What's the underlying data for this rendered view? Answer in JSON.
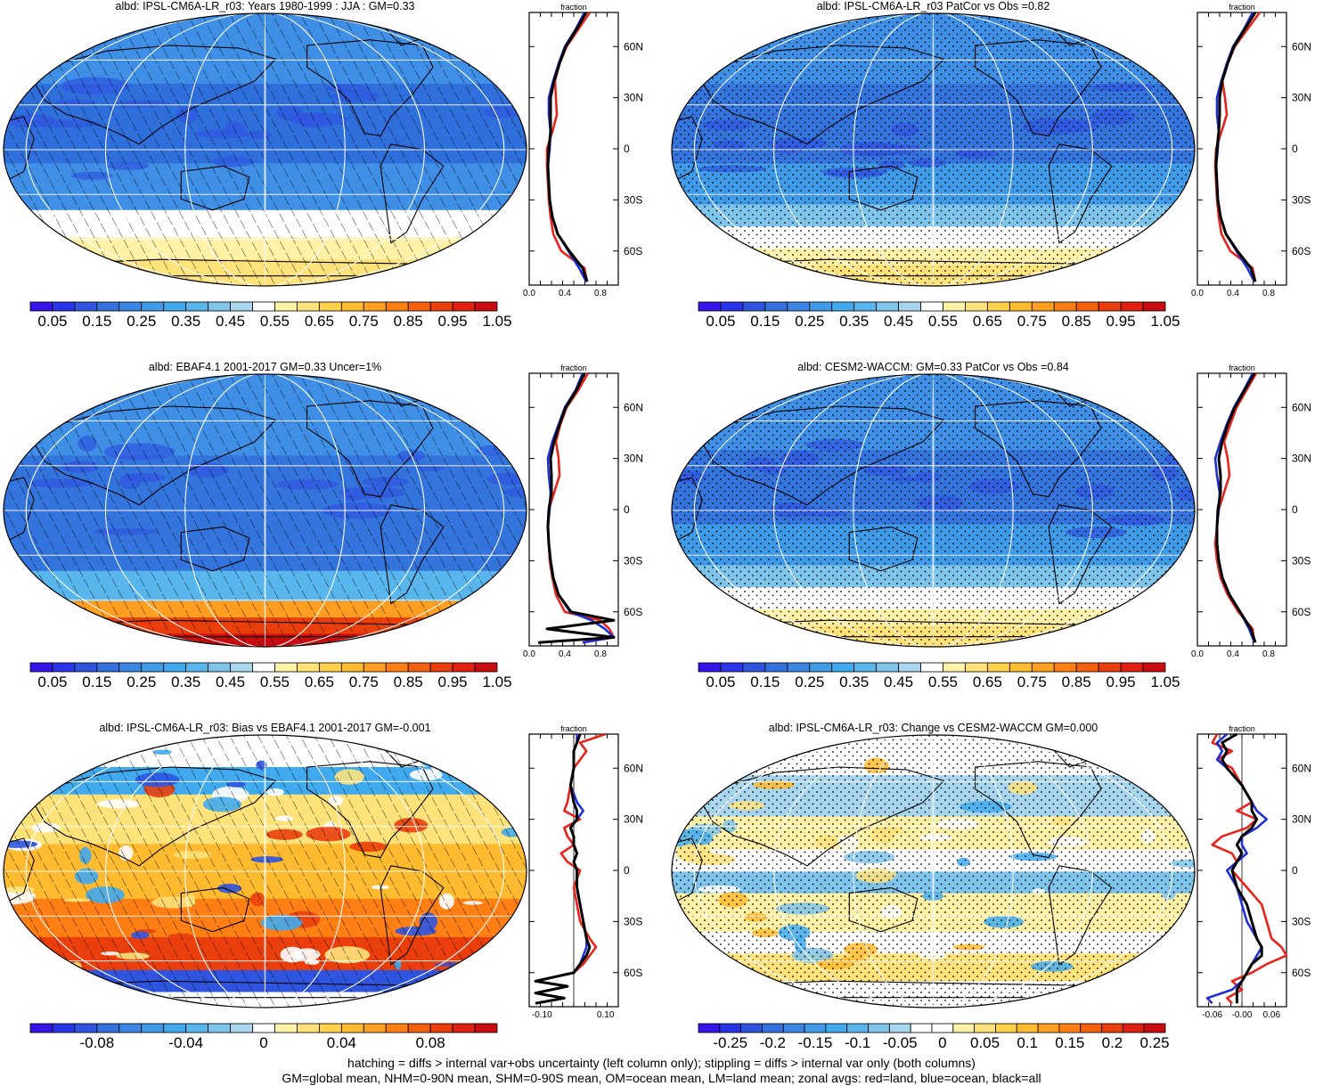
{
  "palettes": {
    "abs": [
      "#3414e6",
      "#2a34e8",
      "#2f55e0",
      "#3470de",
      "#3b86e2",
      "#3f9ae8",
      "#41aaee",
      "#59b6ec",
      "#7fc4ea",
      "#a7d6ee",
      "#ffffff",
      "#fff2a6",
      "#ffe27a",
      "#ffd04a",
      "#ffbb30",
      "#ff9e20",
      "#ff7f14",
      "#f4600e",
      "#ea3f0c",
      "#e02010",
      "#c80c10"
    ],
    "diff": [
      "#3414e6",
      "#2a34e8",
      "#2f55e0",
      "#3470de",
      "#3b86e2",
      "#3f9ae8",
      "#41aaee",
      "#59b6ec",
      "#7fc4ea",
      "#a7d6ee",
      "#ffffff",
      "#ffffff",
      "#fff2a6",
      "#ffe27a",
      "#ffd04a",
      "#ffbb30",
      "#ff9e20",
      "#ff7f14",
      "#f4600e",
      "#ea3f0c",
      "#e02010",
      "#c80c10"
    ]
  },
  "lat_labels": [
    "60N",
    "30N",
    "0",
    "30S",
    "60S"
  ],
  "panels": [
    {
      "title": "albd: IPSL-CM6A-LR_r03: Years 1980-1999 : JJA : GM=0.33",
      "zonal_title": "fraction",
      "zonal_ticks": [
        "0.0",
        "0.4",
        "0.8"
      ],
      "colorbar_labels": [
        "0.05",
        "0.15",
        "0.25",
        "0.35",
        "0.45",
        "0.55",
        "0.65",
        "0.75",
        "0.85",
        "0.95",
        "1.05"
      ]
    },
    {
      "title": "albd: IPSL-CM6A-LR_r03 PatCor vs Obs =0.82",
      "zonal_title": "fraction",
      "zonal_ticks": [
        "0.0",
        "0.4",
        "0.8"
      ],
      "colorbar_labels": [
        "0.05",
        "0.15",
        "0.25",
        "0.35",
        "0.45",
        "0.55",
        "0.65",
        "0.75",
        "0.85",
        "0.95",
        "1.05"
      ]
    },
    {
      "title": "albd: EBAF4.1 2001-2017 GM=0.33 Uncer=1%",
      "zonal_title": "fraction",
      "zonal_ticks": [
        "0.0",
        "0.4",
        "0.8"
      ],
      "colorbar_labels": [
        "0.05",
        "0.15",
        "0.25",
        "0.35",
        "0.45",
        "0.55",
        "0.65",
        "0.75",
        "0.85",
        "0.95",
        "1.05"
      ]
    },
    {
      "title": "albd: CESM2-WACCM: GM=0.33 PatCor vs Obs =0.84",
      "zonal_title": "fraction",
      "zonal_ticks": [
        "0.0",
        "0.4",
        "0.8"
      ],
      "colorbar_labels": [
        "0.05",
        "0.15",
        "0.25",
        "0.35",
        "0.45",
        "0.55",
        "0.65",
        "0.75",
        "0.85",
        "0.95",
        "1.05"
      ]
    },
    {
      "title": "albd: IPSL-CM6A-LR_r03: Bias vs EBAF4.1 2001-2017 GM=-0.001",
      "zonal_title": "fraction",
      "zonal_ticks": [
        "-0.10",
        "0.10"
      ],
      "colorbar_labels": [
        "-0.08",
        "-0.04",
        "0",
        "0.04",
        "0.08"
      ]
    },
    {
      "title": "albd: IPSL-CM6A-LR_r03: Change vs CESM2-WACCM GM=0.000",
      "zonal_title": "fraction",
      "zonal_ticks": [
        "-0.06",
        "-0.00",
        "0.06"
      ],
      "colorbar_labels": [
        "-0.25",
        "-0.2",
        "-0.15",
        "-0.1",
        "-0.05",
        "0",
        "0.05",
        "0.1",
        "0.15",
        "0.2",
        "0.25"
      ]
    }
  ],
  "footnote": {
    "line1": "hatching = diffs > internal var+obs uncertainty (left column only); stippling = diffs > internal var only (both columns)",
    "line2": "GM=global mean, NHM=0-90N mean, SHM=0-90S mean, OM=ocean mean, LM=land mean; zonal avgs: red=land, blue=ocean, black=all"
  },
  "chart_data": [
    {
      "type": "heatmap",
      "title": "albd: IPSL-CM6A-LR_r03: Years 1980-1999 : JJA : GM=0.33",
      "map_projection": "Robinson, Pacific-centred",
      "overlay": "hatching",
      "colorbar_levels": [
        0.05,
        0.1,
        0.15,
        0.2,
        0.25,
        0.3,
        0.35,
        0.4,
        0.45,
        0.5,
        0.55,
        0.6,
        0.65,
        0.7,
        0.75,
        0.8,
        0.85,
        0.9,
        0.95,
        1.0,
        1.05
      ],
      "zonal_mean": {
        "xlabel": "fraction",
        "xlim": [
          0,
          1.0
        ],
        "lat": [
          80,
          70,
          60,
          50,
          40,
          30,
          20,
          10,
          0,
          -10,
          -20,
          -30,
          -40,
          -50,
          -60,
          -70,
          -78
        ],
        "series": [
          {
            "name": "land",
            "color": "#e8231b",
            "values": [
              0.68,
              0.55,
              0.42,
              0.34,
              0.29,
              0.3,
              0.31,
              0.26,
              0.2,
              0.2,
              0.21,
              0.22,
              0.24,
              0.27,
              0.36,
              0.62,
              0.65
            ]
          },
          {
            "name": "ocean",
            "color": "#1f30d8",
            "values": [
              0.62,
              0.52,
              0.4,
              0.33,
              0.27,
              0.22,
              0.22,
              0.24,
              0.23,
              0.21,
              0.22,
              0.23,
              0.26,
              0.32,
              0.44,
              0.56,
              0.64
            ]
          },
          {
            "name": "all",
            "color": "#000000",
            "values": [
              0.64,
              0.53,
              0.41,
              0.34,
              0.28,
              0.24,
              0.24,
              0.24,
              0.22,
              0.21,
              0.22,
              0.23,
              0.26,
              0.32,
              0.45,
              0.6,
              0.65
            ]
          }
        ]
      }
    },
    {
      "type": "heatmap",
      "title": "albd: IPSL-CM6A-LR_r03 PatCor vs Obs =0.82",
      "overlay": "stippling",
      "colorbar_levels": [
        0.05,
        0.1,
        0.15,
        0.2,
        0.25,
        0.3,
        0.35,
        0.4,
        0.45,
        0.5,
        0.55,
        0.6,
        0.65,
        0.7,
        0.75,
        0.8,
        0.85,
        0.9,
        0.95,
        1.0,
        1.05
      ],
      "zonal_mean": {
        "xlabel": "fraction",
        "xlim": [
          0,
          1.0
        ],
        "lat": [
          80,
          70,
          60,
          50,
          40,
          30,
          20,
          10,
          0,
          -10,
          -20,
          -30,
          -40,
          -50,
          -60,
          -70,
          -78
        ],
        "series": [
          {
            "name": "land",
            "color": "#e8231b",
            "values": [
              0.7,
              0.56,
              0.42,
              0.34,
              0.28,
              0.31,
              0.33,
              0.27,
              0.21,
              0.2,
              0.21,
              0.22,
              0.24,
              0.27,
              0.37,
              0.62,
              0.65
            ]
          },
          {
            "name": "ocean",
            "color": "#1f30d8",
            "values": [
              0.62,
              0.52,
              0.4,
              0.33,
              0.27,
              0.22,
              0.22,
              0.24,
              0.23,
              0.21,
              0.22,
              0.23,
              0.26,
              0.32,
              0.44,
              0.56,
              0.64
            ]
          },
          {
            "name": "all",
            "color": "#000000",
            "values": [
              0.65,
              0.53,
              0.41,
              0.34,
              0.28,
              0.25,
              0.25,
              0.24,
              0.22,
              0.21,
              0.22,
              0.23,
              0.26,
              0.32,
              0.45,
              0.6,
              0.65
            ]
          }
        ]
      }
    },
    {
      "type": "heatmap",
      "title": "albd: EBAF4.1 2001-2017 GM=0.33 Uncer=1%",
      "overlay": "hatching",
      "colorbar_levels": [
        0.05,
        0.1,
        0.15,
        0.2,
        0.25,
        0.3,
        0.35,
        0.4,
        0.45,
        0.5,
        0.55,
        0.6,
        0.65,
        0.7,
        0.75,
        0.8,
        0.85,
        0.9,
        0.95,
        1.0,
        1.05
      ],
      "zonal_mean": {
        "xlabel": "fraction",
        "xlim": [
          0,
          1.0
        ],
        "lat": [
          80,
          70,
          60,
          50,
          40,
          30,
          20,
          10,
          0,
          -10,
          -20,
          -30,
          -40,
          -50,
          -60,
          -65,
          -70,
          -75,
          -78
        ],
        "series": [
          {
            "name": "land",
            "color": "#e8231b",
            "values": [
              0.66,
              0.55,
              0.42,
              0.35,
              0.3,
              0.33,
              0.34,
              0.28,
              0.22,
              0.21,
              0.22,
              0.23,
              0.26,
              0.3,
              0.4,
              0.8,
              0.9,
              0.95,
              0.6
            ]
          },
          {
            "name": "ocean",
            "color": "#1f30d8",
            "values": [
              0.6,
              0.52,
              0.4,
              0.33,
              0.26,
              0.21,
              0.22,
              0.24,
              0.23,
              0.21,
              0.22,
              0.24,
              0.27,
              0.33,
              0.46,
              0.7,
              0.85,
              0.95,
              0.6
            ]
          },
          {
            "name": "all",
            "color": "#000000",
            "values": [
              0.62,
              0.53,
              0.41,
              0.34,
              0.28,
              0.24,
              0.25,
              0.25,
              0.22,
              0.21,
              0.22,
              0.24,
              0.27,
              0.33,
              0.47,
              0.95,
              0.2,
              0.95,
              0.1
            ]
          }
        ]
      }
    },
    {
      "type": "heatmap",
      "title": "albd: CESM2-WACCM: GM=0.33 PatCor vs Obs =0.84",
      "overlay": "stippling",
      "colorbar_levels": [
        0.05,
        0.1,
        0.15,
        0.2,
        0.25,
        0.3,
        0.35,
        0.4,
        0.45,
        0.5,
        0.55,
        0.6,
        0.65,
        0.7,
        0.75,
        0.8,
        0.85,
        0.9,
        0.95,
        1.0,
        1.05
      ],
      "zonal_mean": {
        "xlabel": "fraction",
        "xlim": [
          0,
          1.0
        ],
        "lat": [
          80,
          70,
          60,
          50,
          40,
          30,
          20,
          10,
          0,
          -10,
          -20,
          -30,
          -40,
          -50,
          -60,
          -70,
          -78
        ],
        "series": [
          {
            "name": "land",
            "color": "#e8231b",
            "values": [
              0.66,
              0.55,
              0.44,
              0.37,
              0.3,
              0.34,
              0.36,
              0.3,
              0.24,
              0.22,
              0.2,
              0.22,
              0.26,
              0.34,
              0.46,
              0.62,
              0.64
            ]
          },
          {
            "name": "ocean",
            "color": "#1f30d8",
            "values": [
              0.62,
              0.52,
              0.41,
              0.33,
              0.26,
              0.2,
              0.22,
              0.25,
              0.24,
              0.22,
              0.22,
              0.24,
              0.28,
              0.36,
              0.48,
              0.58,
              0.64
            ]
          },
          {
            "name": "all",
            "color": "#000000",
            "values": [
              0.64,
              0.53,
              0.42,
              0.34,
              0.28,
              0.24,
              0.26,
              0.26,
              0.23,
              0.22,
              0.22,
              0.24,
              0.28,
              0.36,
              0.48,
              0.6,
              0.65
            ]
          }
        ]
      }
    },
    {
      "type": "heatmap",
      "title": "albd: IPSL-CM6A-LR_r03: Bias vs EBAF4.1 2001-2017 GM=-0.001",
      "overlay": "hatching",
      "colorbar_levels": [
        -0.1,
        -0.09,
        -0.08,
        -0.07,
        -0.06,
        -0.05,
        -0.04,
        -0.03,
        -0.02,
        -0.01,
        0,
        0.01,
        0.02,
        0.03,
        0.04,
        0.05,
        0.06,
        0.07,
        0.08,
        0.09,
        0.1
      ],
      "zonal_mean": {
        "xlabel": "fraction",
        "xlim": [
          -0.14,
          0.14
        ],
        "lat": [
          80,
          75,
          70,
          60,
          50,
          40,
          35,
          30,
          25,
          20,
          15,
          10,
          5,
          0,
          -10,
          -20,
          -30,
          -40,
          -45,
          -50,
          -55,
          -60,
          -65,
          -68,
          -72,
          -75,
          -78
        ],
        "series": [
          {
            "name": "land",
            "color": "#e8231b",
            "values": [
              0.1,
              0.02,
              0.04,
              0.0,
              -0.01,
              -0.02,
              -0.03,
              0.02,
              -0.03,
              -0.02,
              0.0,
              -0.04,
              -0.02,
              0.02,
              0.0,
              0.01,
              0.02,
              0.05,
              0.07,
              0.05,
              0.03,
              0.0,
              -0.12,
              -0.02,
              -0.12,
              -0.03,
              -0.12
            ]
          },
          {
            "name": "ocean",
            "color": "#1f30d8",
            "values": [
              0.01,
              0.01,
              0.0,
              0.0,
              -0.01,
              0.01,
              0.03,
              0.01,
              -0.01,
              0.0,
              0.0,
              0.01,
              0.0,
              0.01,
              0.01,
              0.02,
              0.03,
              0.04,
              0.04,
              0.03,
              0.02,
              0.0,
              -0.12,
              -0.02,
              -0.12,
              -0.03,
              -0.12
            ]
          },
          {
            "name": "all",
            "color": "#000000",
            "values": [
              0.02,
              0.01,
              0.0,
              0.0,
              -0.01,
              0.0,
              0.01,
              0.01,
              -0.01,
              0.0,
              0.0,
              0.01,
              0.0,
              0.01,
              0.01,
              0.02,
              0.03,
              0.04,
              0.05,
              0.04,
              0.02,
              0.0,
              -0.12,
              -0.02,
              -0.12,
              -0.03,
              -0.12
            ]
          }
        ]
      }
    },
    {
      "type": "heatmap",
      "title": "albd: IPSL-CM6A-LR_r03: Change vs CESM2-WACCM GM=0.000",
      "overlay": "stippling",
      "colorbar_levels": [
        -0.275,
        -0.25,
        -0.225,
        -0.2,
        -0.175,
        -0.15,
        -0.125,
        -0.1,
        -0.075,
        -0.05,
        -0.025,
        0,
        0.025,
        0.05,
        0.075,
        0.1,
        0.125,
        0.15,
        0.175,
        0.2,
        0.225,
        0.25,
        0.275
      ],
      "zonal_mean": {
        "xlabel": "fraction",
        "xlim": [
          -0.09,
          0.09
        ],
        "lat": [
          80,
          75,
          70,
          65,
          60,
          50,
          40,
          35,
          30,
          25,
          20,
          15,
          10,
          5,
          0,
          -10,
          -20,
          -30,
          -40,
          -45,
          -50,
          -55,
          -60,
          -65,
          -70,
          -75,
          -78
        ],
        "series": [
          {
            "name": "land",
            "color": "#e8231b",
            "values": [
              -0.05,
              -0.06,
              -0.02,
              -0.05,
              -0.02,
              0.0,
              0.02,
              -0.01,
              0.03,
              0.01,
              -0.04,
              -0.06,
              -0.02,
              -0.01,
              -0.02,
              0.01,
              0.04,
              0.05,
              0.06,
              0.08,
              0.09,
              0.05,
              0.02,
              -0.02,
              0.0,
              -0.03,
              -0.02
            ]
          },
          {
            "name": "ocean",
            "color": "#1f30d8",
            "values": [
              -0.03,
              -0.05,
              -0.04,
              -0.05,
              -0.03,
              0.0,
              0.02,
              0.03,
              0.05,
              0.03,
              0.0,
              0.0,
              0.01,
              -0.01,
              -0.03,
              -0.01,
              0.0,
              0.01,
              0.03,
              0.04,
              0.03,
              0.02,
              0.01,
              0.0,
              -0.02,
              -0.07,
              -0.06
            ]
          },
          {
            "name": "all",
            "color": "#000000",
            "values": [
              -0.01,
              -0.04,
              -0.03,
              -0.04,
              -0.03,
              0.0,
              0.02,
              0.02,
              0.03,
              0.02,
              0.0,
              -0.01,
              0.0,
              -0.01,
              -0.02,
              -0.01,
              0.01,
              0.02,
              0.03,
              0.04,
              0.04,
              0.02,
              0.01,
              0.0,
              -0.01,
              -0.01,
              -0.01
            ]
          }
        ]
      }
    }
  ]
}
